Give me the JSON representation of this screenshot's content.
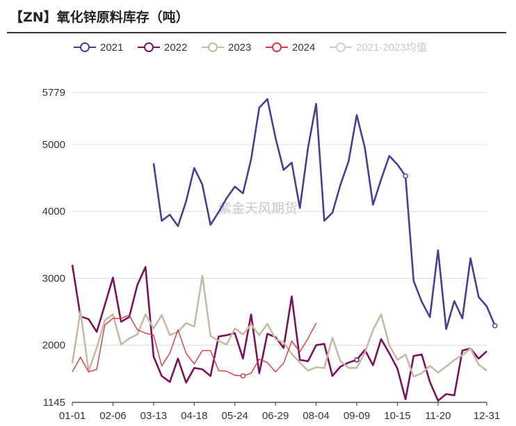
{
  "header": {
    "title": "【ZN】氧化锌原料库存（吨）"
  },
  "watermark": "紫金天风期货",
  "chart_data": {
    "type": "line",
    "title": "【ZN】氧化锌原料库存（吨）",
    "xlabel": "",
    "ylabel": "",
    "ylim": [
      1145,
      5779
    ],
    "yticks": [
      "5779",
      "5000",
      "4000",
      "3000",
      "2000",
      "1145"
    ],
    "ytick_values": [
      5779,
      5000,
      4000,
      3000,
      2000,
      1145
    ],
    "x_ticks": [
      "01-01",
      "02-06",
      "03-13",
      "04-18",
      "05-24",
      "06-29",
      "08-04",
      "09-09",
      "10-15",
      "11-20",
      "12-31"
    ],
    "x_tick_index": [
      0,
      5,
      10,
      15,
      20,
      25,
      30,
      35,
      40,
      45,
      51
    ],
    "x_count": 52,
    "grid": "horizontal",
    "legend": "top",
    "series": [
      {
        "name": "2021",
        "color": "#4b3d95",
        "width": 2.6,
        "legend_dim": false,
        "start": 10,
        "values": [
          4720,
          3860,
          3950,
          3780,
          4150,
          4650,
          4400,
          3800,
          3990,
          4200,
          4370,
          4270,
          4780,
          5550,
          5680,
          5100,
          4620,
          4730,
          4050,
          4950,
          5610,
          3860,
          3980,
          4400,
          4750,
          5440,
          4950,
          4100,
          4480,
          4830,
          4700,
          4530,
          2960,
          2650,
          2420,
          3420,
          2240,
          2660,
          2400,
          3300,
          2720,
          2580,
          2290
        ],
        "marker_index": [
          31,
          42
        ]
      },
      {
        "name": "2022",
        "color": "#7d0f5c",
        "width": 2.6,
        "legend_dim": false,
        "start": 0,
        "values": [
          3200,
          2430,
          2390,
          2200,
          2600,
          3010,
          2350,
          2420,
          2900,
          3170,
          1830,
          1540,
          1450,
          1800,
          1440,
          1660,
          1640,
          1540,
          2130,
          2150,
          2180,
          1800,
          2460,
          1580,
          2170,
          2120,
          1960,
          2730,
          1780,
          1760,
          2000,
          2020,
          1540,
          1680,
          1740,
          1780,
          1930,
          1700,
          2090,
          1880,
          1650,
          1190,
          1840,
          1860,
          1450,
          1170,
          1270,
          1250,
          1920,
          1950,
          1800,
          1910
        ],
        "marker_index": [
          35
        ]
      },
      {
        "name": "2023",
        "color": "#c8b9a6",
        "width": 2.6,
        "legend_dim": false,
        "start": 0,
        "values": [
          1730,
          2510,
          1610,
          1960,
          2370,
          2460,
          2010,
          2100,
          2160,
          2460,
          2250,
          2450,
          2150,
          2200,
          2330,
          2280,
          3040,
          2140,
          2060,
          2010,
          2250,
          2160,
          2310,
          2150,
          2320,
          2090,
          2040,
          1870,
          1740,
          1620,
          1670,
          1660,
          2110,
          1760,
          1660,
          1660,
          1890,
          2230,
          2460,
          2000,
          1780,
          1860,
          1530,
          1580,
          1690,
          1590,
          1680,
          1780,
          1850,
          1950,
          1710,
          1620
        ],
        "marker_index": []
      },
      {
        "name": "2024",
        "color": "#d9373f",
        "width": 1.4,
        "legend_dim": false,
        "start": 0,
        "values": [
          1600,
          1820,
          1600,
          1640,
          2300,
          2400,
          2400,
          2450,
          2230,
          2180,
          2150,
          1690,
          1880,
          2230,
          1880,
          1720,
          1920,
          1920,
          1620,
          1610,
          1550,
          1540,
          1580,
          1790,
          1740,
          1600,
          1730,
          2060,
          1900,
          2100,
          2330
        ],
        "marker_index": [
          21
        ]
      },
      {
        "name": "2021-2023均值",
        "color": "#d4d4d4",
        "width": 2,
        "legend_dim": true,
        "start": 0,
        "values": [],
        "marker_index": []
      }
    ]
  }
}
